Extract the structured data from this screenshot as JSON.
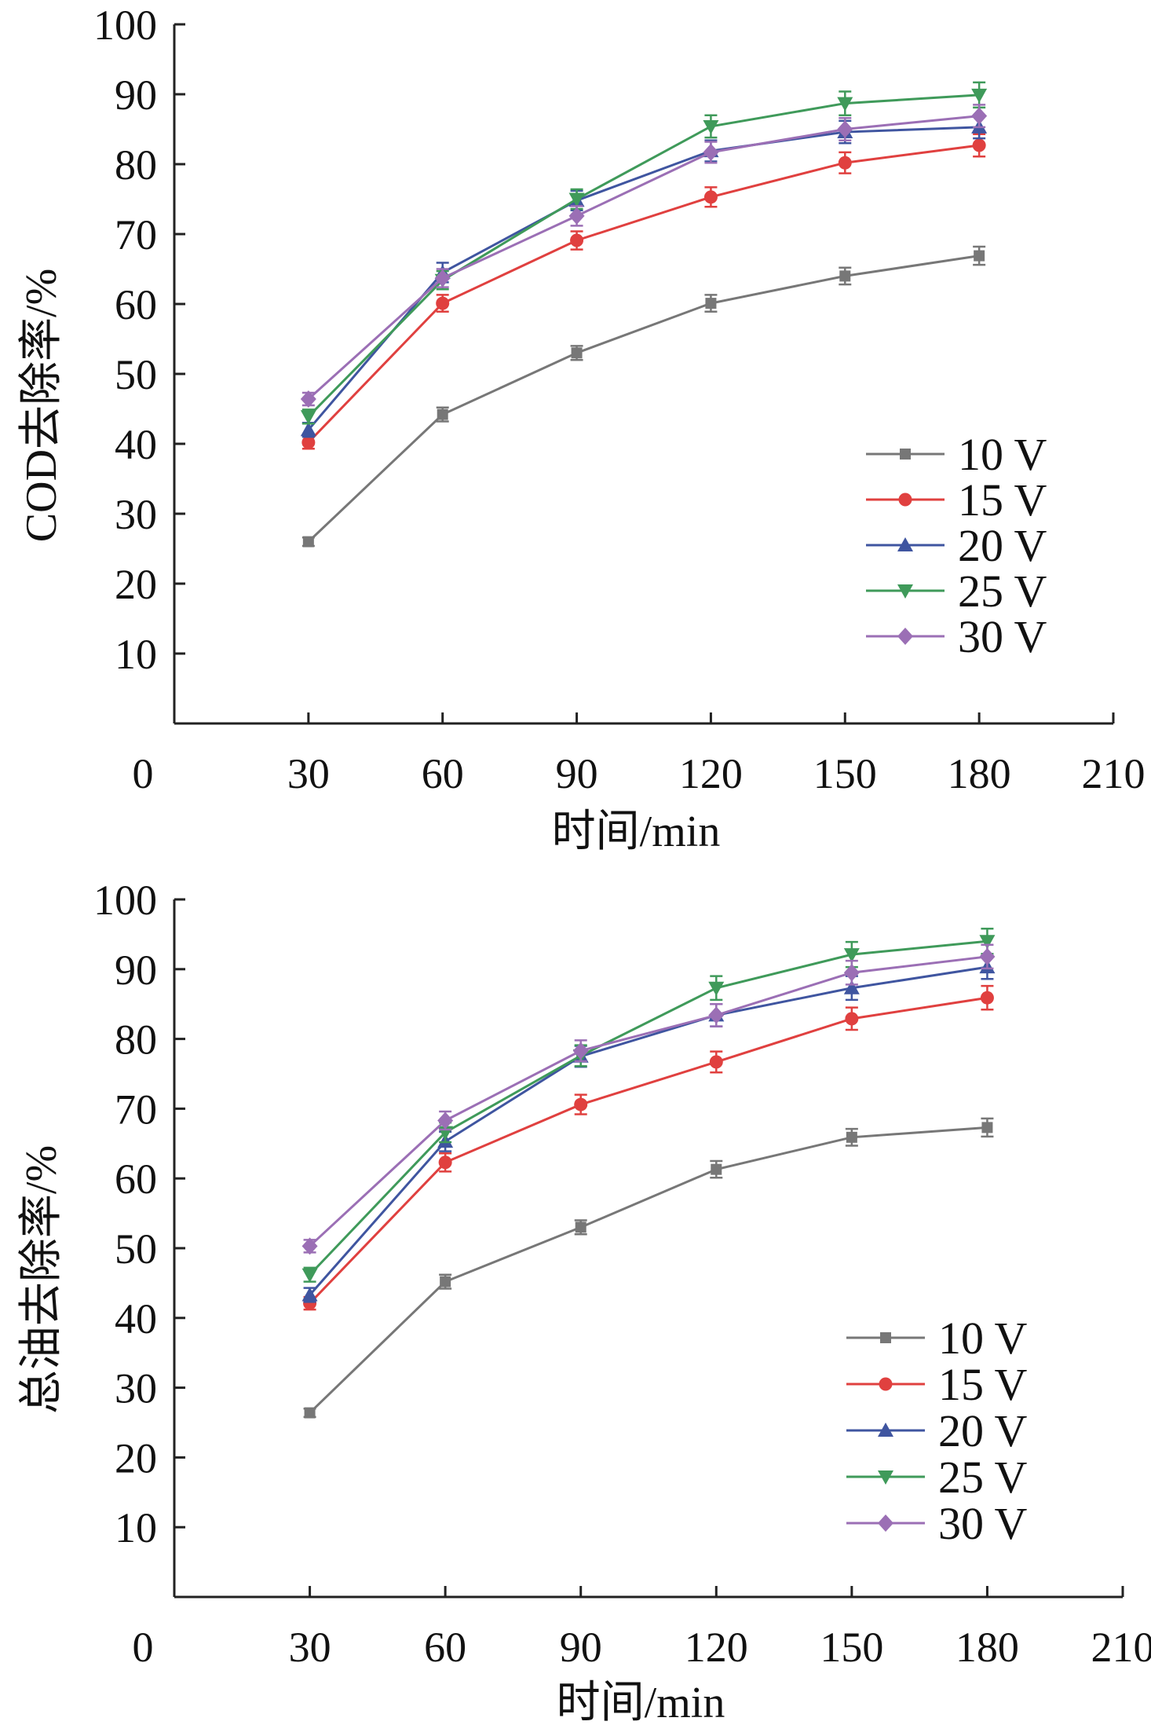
{
  "chart_data": [
    {
      "type": "line",
      "ylabel": "COD去除率/%",
      "xlabel": "时间/min",
      "xlim": [
        0,
        210
      ],
      "ylim": [
        0,
        100
      ],
      "xticks": [
        0,
        30,
        60,
        90,
        120,
        150,
        180,
        210
      ],
      "yticks": [
        10,
        20,
        30,
        40,
        50,
        60,
        70,
        80,
        90,
        100
      ],
      "legend_position": "lower-right",
      "x": [
        30,
        60,
        90,
        120,
        150,
        180
      ],
      "series": [
        {
          "name": "10 V",
          "color": "#777777",
          "marker": "square",
          "values": [
            26,
            44.2,
            53,
            60.1,
            64,
            66.9
          ],
          "errors": [
            0.6,
            1.0,
            1.0,
            1.2,
            1.2,
            1.3
          ]
        },
        {
          "name": "15 V",
          "color": "#e0403f",
          "marker": "circle",
          "values": [
            40.2,
            60.1,
            69.1,
            75.3,
            80.2,
            82.7
          ],
          "errors": [
            0.9,
            1.2,
            1.3,
            1.4,
            1.5,
            1.6
          ]
        },
        {
          "name": "20 V",
          "color": "#3f55a0",
          "marker": "triangle-up",
          "values": [
            42,
            64.5,
            74.8,
            81.9,
            84.6,
            85.3
          ],
          "errors": [
            1.0,
            1.4,
            1.4,
            1.5,
            1.6,
            1.6
          ]
        },
        {
          "name": "25 V",
          "color": "#3f9a5a",
          "marker": "triangle-down",
          "values": [
            43.9,
            63.4,
            75,
            85.4,
            88.7,
            89.9
          ],
          "errors": [
            1.0,
            1.3,
            1.4,
            1.6,
            1.7,
            1.8
          ]
        },
        {
          "name": "30 V",
          "color": "#9b6fb5",
          "marker": "diamond",
          "values": [
            46.4,
            63.7,
            72.6,
            81.7,
            85,
            86.9
          ],
          "errors": [
            0.9,
            1.3,
            1.4,
            1.5,
            1.6,
            1.6
          ]
        }
      ]
    },
    {
      "type": "line",
      "ylabel": "总油去除率/%",
      "xlabel": "时间/min",
      "xlim": [
        0,
        210
      ],
      "ylim": [
        0,
        100
      ],
      "xticks": [
        0,
        30,
        60,
        90,
        120,
        150,
        180,
        210
      ],
      "yticks": [
        10,
        20,
        30,
        40,
        50,
        60,
        70,
        80,
        90,
        100
      ],
      "legend_position": "lower-right",
      "x": [
        30,
        60,
        90,
        120,
        150,
        180
      ],
      "series": [
        {
          "name": "10 V",
          "color": "#777777",
          "marker": "square",
          "values": [
            26.4,
            45.2,
            53,
            61.3,
            65.9,
            67.3
          ],
          "errors": [
            0.6,
            1.0,
            1.0,
            1.2,
            1.2,
            1.3
          ]
        },
        {
          "name": "15 V",
          "color": "#e0403f",
          "marker": "circle",
          "values": [
            42.1,
            62.3,
            70.6,
            76.7,
            82.9,
            85.9
          ],
          "errors": [
            0.9,
            1.3,
            1.4,
            1.5,
            1.6,
            1.7
          ]
        },
        {
          "name": "20 V",
          "color": "#3f55a0",
          "marker": "triangle-up",
          "values": [
            43.3,
            65.3,
            77.5,
            83.4,
            87.3,
            90.3
          ],
          "errors": [
            1.0,
            1.4,
            1.5,
            1.6,
            1.7,
            1.7
          ]
        },
        {
          "name": "25 V",
          "color": "#3f9a5a",
          "marker": "triangle-down",
          "values": [
            46.2,
            66.6,
            77.6,
            87.3,
            92.1,
            94
          ],
          "errors": [
            1.0,
            1.4,
            1.5,
            1.7,
            1.8,
            1.8
          ]
        },
        {
          "name": "30 V",
          "color": "#9b6fb5",
          "marker": "diamond",
          "values": [
            50.3,
            68.3,
            78.3,
            83.4,
            89.5,
            91.8
          ],
          "errors": [
            0.9,
            1.3,
            1.5,
            1.6,
            1.7,
            1.7
          ]
        }
      ]
    }
  ]
}
